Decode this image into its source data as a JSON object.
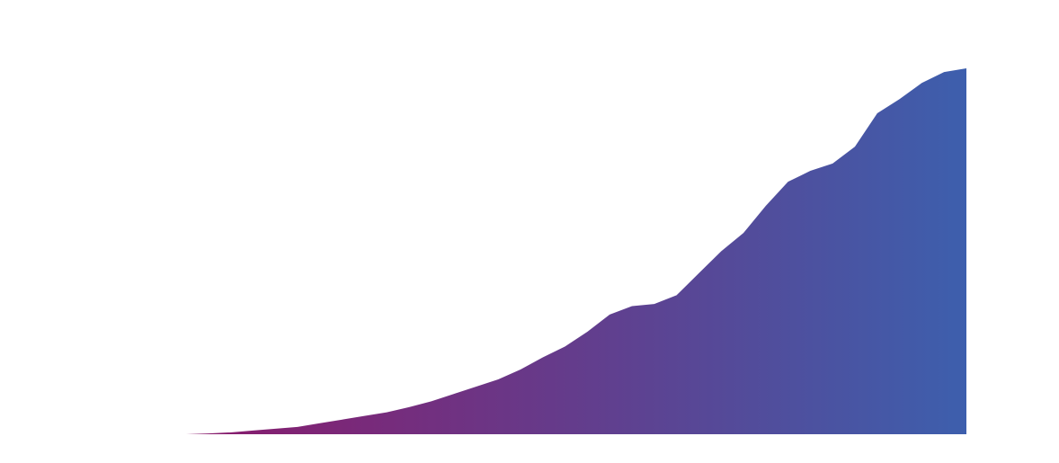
{
  "chart_data": {
    "type": "area",
    "values": [
      0,
      0.2,
      0.5,
      1,
      1.5,
      2,
      3,
      4,
      5,
      6,
      7.4,
      9,
      11,
      13,
      15,
      17.7,
      21,
      24,
      28,
      32.7,
      35,
      35.6,
      38,
      44,
      50,
      55,
      62.4,
      69,
      72,
      74,
      78.6,
      87.7,
      91.6,
      96,
      99,
      100
    ],
    "gradient": [
      "#8a1a6b",
      "#3d5fad"
    ],
    "ylim": [
      0,
      100
    ]
  }
}
